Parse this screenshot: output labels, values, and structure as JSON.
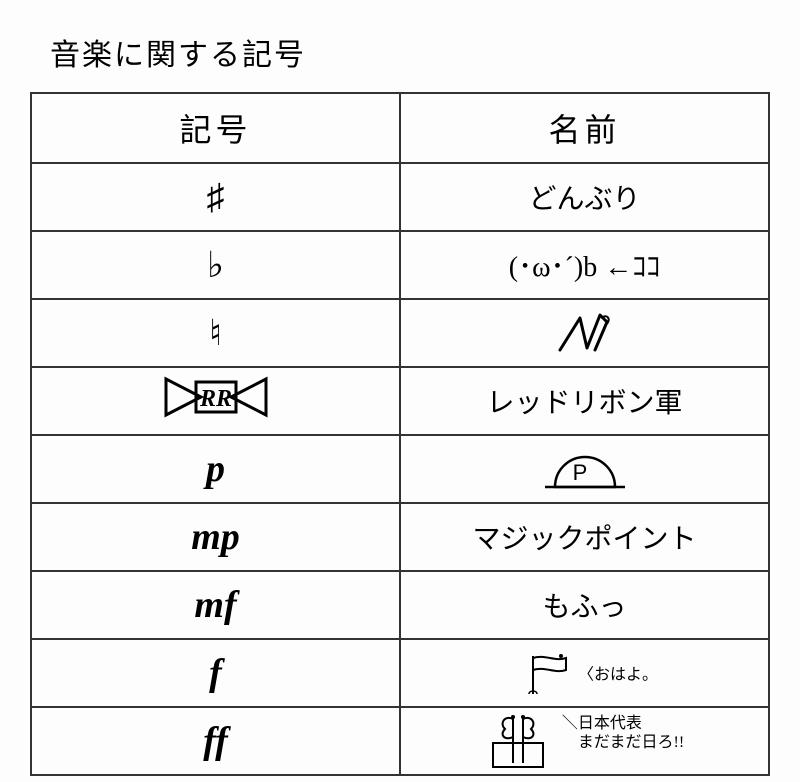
{
  "title": "音楽に関する記号",
  "table": {
    "headers": {
      "symbol": "記号",
      "name": "名前"
    },
    "rows": [
      {
        "symbol": "♯",
        "symbol_class": "",
        "name_type": "text",
        "name": "どんぶり"
      },
      {
        "symbol": "♭",
        "symbol_class": "",
        "name_type": "text",
        "name": "(･ω･´)b ←ｺｺ"
      },
      {
        "symbol": "♮",
        "symbol_class": "",
        "name_type": "drawing-natural",
        "name": ""
      },
      {
        "symbol": "rr-ribbon",
        "symbol_class": "",
        "name_type": "text",
        "name": "レッドリボン軍"
      },
      {
        "symbol": "p",
        "symbol_class": "dynamic",
        "name_type": "drawing-p",
        "name": "P"
      },
      {
        "symbol": "mp",
        "symbol_class": "dynamic",
        "name_type": "text",
        "name": "マジックポイント"
      },
      {
        "symbol": "mf",
        "symbol_class": "dynamic",
        "name_type": "text",
        "name": "もふっ"
      },
      {
        "symbol": "f",
        "symbol_class": "dynamic",
        "name_type": "drawing-f",
        "name": "おはよ。"
      },
      {
        "symbol": "ff",
        "symbol_class": "dynamic",
        "name_type": "drawing-ff",
        "name": "日本代表 まだまだ日ろ!!"
      }
    ]
  },
  "colors": {
    "border": "#333333",
    "text": "#000000",
    "background": "#fdfdfd"
  }
}
